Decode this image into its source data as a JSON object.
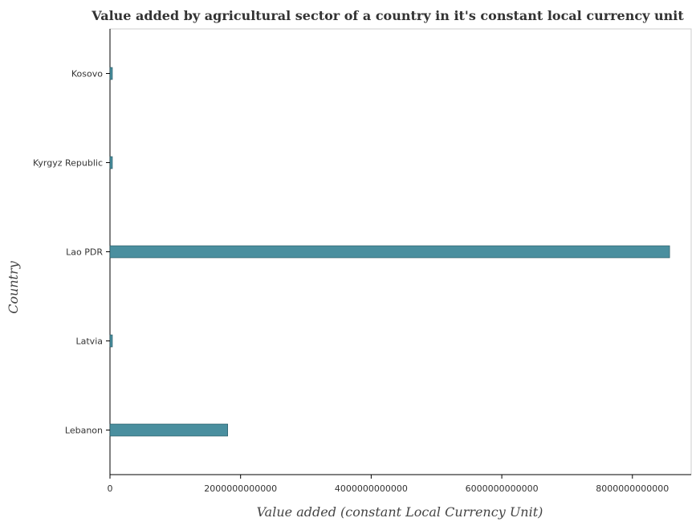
{
  "chart_data": {
    "type": "bar",
    "orientation": "horizontal",
    "title": "Value added by agricultural sector of a country in it's constant local currency unit",
    "xlabel": "Value added (constant Local Currency Unit)",
    "ylabel": "Country",
    "categories": [
      "Kosovo",
      "Kyrgyz Republic",
      "Lao PDR",
      "Latvia",
      "Lebanon"
    ],
    "values": [
      3500000000,
      13000000000,
      8570000000000,
      5000000000,
      1803000000000
    ],
    "xlim": [
      0,
      8900000000000
    ],
    "xticks": [
      0,
      2000000000000,
      4000000000000,
      6000000000000,
      8000000000000
    ],
    "xtick_labels": [
      "0",
      "2000000000000",
      "4000000000000",
      "6000000000000",
      "8000000000000"
    ],
    "grid": false,
    "legend": "none",
    "bar_color": "#4a8f9f",
    "bar_edge_color": "#1f4f5a"
  }
}
